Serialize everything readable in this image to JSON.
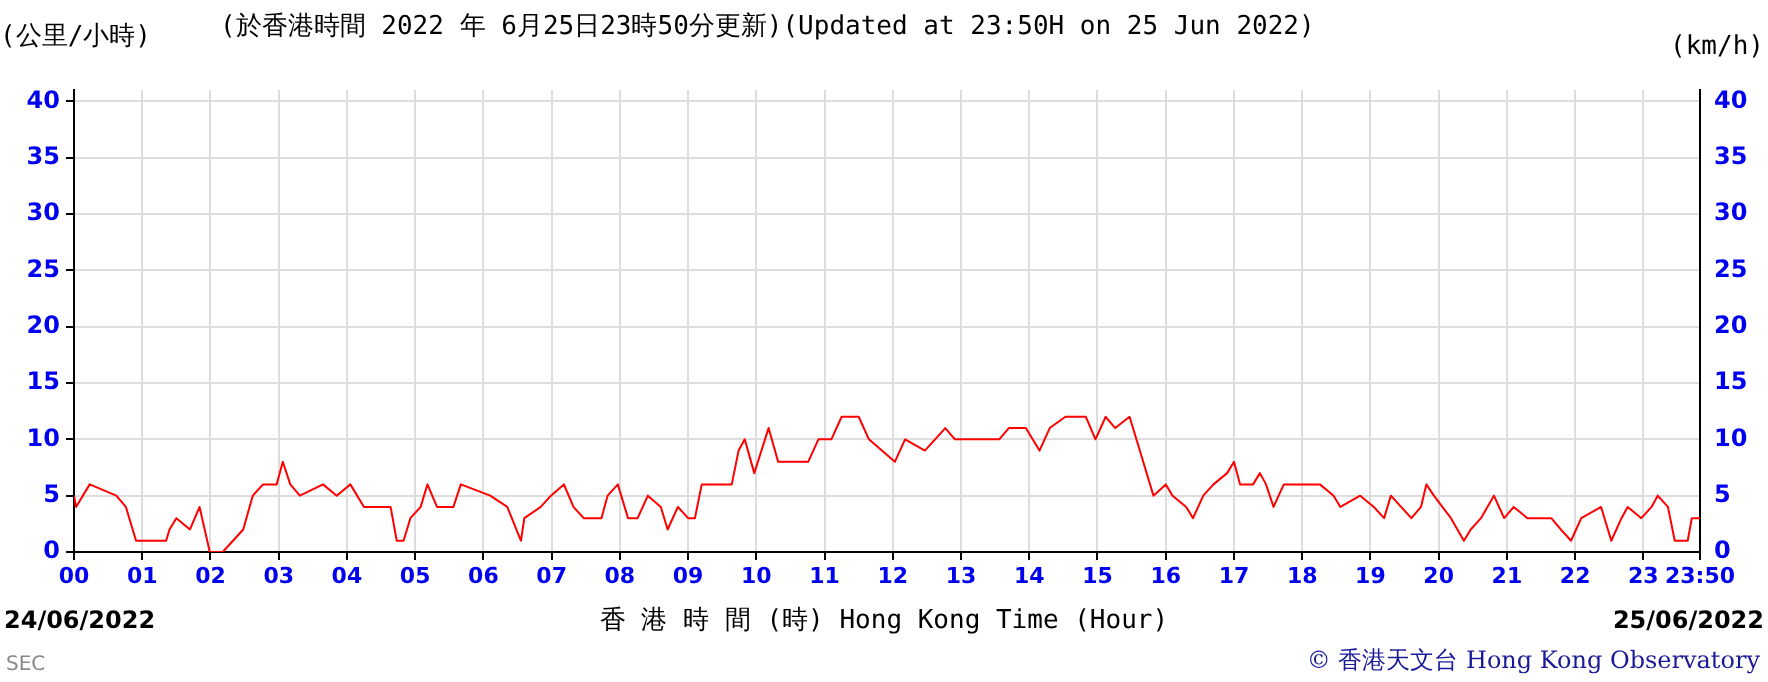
{
  "chart_data": {
    "type": "line",
    "title": "(於香港時間 2022 年 6月25日23時50分更新)(Updated at 23:50H on 25 Jun 2022)",
    "xlabel": "香 港 時 間 (時) Hong Kong Time (Hour)",
    "ylabel": "(公里/小時)",
    "y2label": "(km/h)",
    "annotations": [
      "24/06/2022",
      "25/06/2022",
      "SEC",
      "© 香港天文台 Hong Kong Observatory"
    ],
    "series": [
      {
        "color": "#ff0000",
        "x": [
          0,
          0.03,
          0.23,
          0.62,
          0.76,
          0.91,
          1.35,
          1.4,
          1.5,
          1.7,
          1.84,
          1.99,
          2.18,
          2.33,
          2.48,
          2.62,
          2.77,
          2.97,
          3.06,
          3.17,
          3.31,
          3.65,
          3.85,
          4.05,
          4.25,
          4.64,
          4.73,
          4.83,
          4.93,
          5.08,
          5.18,
          5.32,
          5.56,
          5.67,
          6.1,
          6.35,
          6.55,
          6.6,
          6.84,
          6.99,
          7.18,
          7.32,
          7.47,
          7.73,
          7.82,
          7.97,
          8.12,
          8.26,
          8.41,
          8.6,
          8.7,
          8.85,
          9.0,
          9.1,
          9.2,
          9.64,
          9.74,
          9.83,
          9.97,
          10.18,
          10.32,
          10.76,
          10.91,
          11.1,
          11.25,
          11.5,
          11.65,
          12.03,
          12.18,
          12.47,
          12.77,
          12.91,
          13.56,
          13.7,
          13.95,
          14.15,
          14.3,
          14.53,
          14.83,
          14.97,
          15.12,
          15.26,
          15.47,
          15.62,
          15.82,
          16.0,
          16.1,
          16.3,
          16.4,
          16.55,
          16.7,
          16.9,
          17.0,
          17.09,
          17.28,
          17.38,
          17.47,
          17.58,
          17.73,
          18.26,
          18.46,
          18.56,
          18.85,
          19.05,
          19.2,
          19.3,
          19.6,
          19.74,
          19.82,
          19.93,
          20.18,
          20.37,
          20.47,
          20.62,
          20.81,
          20.96,
          21.1,
          21.3,
          21.65,
          21.79,
          21.94,
          22.09,
          22.38,
          22.53,
          22.68,
          22.77,
          22.97,
          23.12,
          23.21,
          23.36,
          23.46,
          23.65,
          23.71,
          23.83
        ],
        "values": [
          5,
          4,
          6,
          5,
          4,
          1,
          1,
          2,
          3,
          2,
          4,
          0,
          0,
          1,
          2,
          5,
          6,
          6,
          8,
          6,
          5,
          6,
          5,
          6,
          4,
          4,
          1,
          1,
          3,
          4,
          6,
          4,
          4,
          6,
          5,
          4,
          1,
          3,
          4,
          5,
          6,
          4,
          3,
          3,
          5,
          6,
          3,
          3,
          5,
          4,
          2,
          4,
          3,
          3,
          6,
          6,
          9,
          10,
          7,
          11,
          8,
          8,
          10,
          10,
          12,
          12,
          10,
          8,
          10,
          9,
          11,
          10,
          10,
          11,
          11,
          9,
          11,
          12,
          12,
          10,
          12,
          11,
          12,
          9,
          5,
          6,
          5,
          4,
          3,
          5,
          6,
          7,
          8,
          6,
          6,
          7,
          6,
          4,
          6,
          6,
          5,
          4,
          5,
          4,
          3,
          5,
          3,
          4,
          6,
          5,
          3,
          1,
          2,
          3,
          5,
          3,
          4,
          3,
          3,
          2,
          1,
          3,
          4,
          1,
          3,
          4,
          3,
          4,
          5,
          4,
          1,
          1,
          3,
          3
        ]
      }
    ],
    "xlim": [
      0,
      23.83
    ],
    "xticks": [
      {
        "value": 0,
        "label": "00"
      },
      {
        "value": 1,
        "label": "01"
      },
      {
        "value": 2,
        "label": "02"
      },
      {
        "value": 3,
        "label": "03"
      },
      {
        "value": 4,
        "label": "04"
      },
      {
        "value": 5,
        "label": "05"
      },
      {
        "value": 6,
        "label": "06"
      },
      {
        "value": 7,
        "label": "07"
      },
      {
        "value": 8,
        "label": "08"
      },
      {
        "value": 9,
        "label": "09"
      },
      {
        "value": 10,
        "label": "10"
      },
      {
        "value": 11,
        "label": "11"
      },
      {
        "value": 12,
        "label": "12"
      },
      {
        "value": 13,
        "label": "13"
      },
      {
        "value": 14,
        "label": "14"
      },
      {
        "value": 15,
        "label": "15"
      },
      {
        "value": 16,
        "label": "16"
      },
      {
        "value": 17,
        "label": "17"
      },
      {
        "value": 18,
        "label": "18"
      },
      {
        "value": 19,
        "label": "19"
      },
      {
        "value": 20,
        "label": "20"
      },
      {
        "value": 21,
        "label": "21"
      },
      {
        "value": 22,
        "label": "22"
      },
      {
        "value": 23,
        "label": "23"
      },
      {
        "value": 23.83,
        "label": "23:50"
      }
    ],
    "ylim": [
      0,
      41
    ],
    "yticks": [
      0,
      5,
      10,
      15,
      20,
      25,
      30,
      35,
      40
    ],
    "y2lim": [
      0,
      41
    ],
    "y2ticks": [
      0,
      5,
      10,
      15,
      20,
      25,
      30,
      35,
      40
    ],
    "grid": true,
    "legend": false,
    "marker": "none"
  }
}
